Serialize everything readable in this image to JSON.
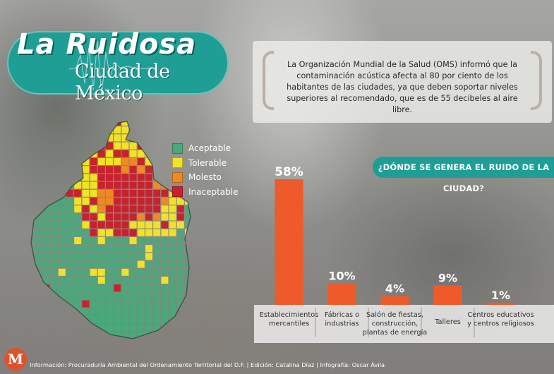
{
  "title": {
    "line1": "La Ruidosa",
    "line2": "Ciudad de México"
  },
  "info_text": "La Organización Mundial de la Salud (OMS) informó que la contaminación acústica afecta al 80 por ciento de los habitantes de las ciudades, ya que deben soportar niveles superiores al recomendado, que es de 55 decibeles al aire libre.",
  "legend": [
    {
      "label": "Aceptable",
      "color": "#4aa87a"
    },
    {
      "label": "Tolerable",
      "color": "#f0e226"
    },
    {
      "label": "Molesto",
      "color": "#ee8a22"
    },
    {
      "label": "Inaceptable",
      "color": "#c8222e"
    }
  ],
  "colors": {
    "teal": "#1f9e96",
    "bar": "#ef5a2a",
    "logo": "#e2502a"
  },
  "chart_data": {
    "type": "bar",
    "title": "¿DÓNDE SE GENERA EL RUIDO DE LA CIUDAD?",
    "categories": [
      [
        "Establecimientos",
        "mercantiles"
      ],
      [
        "Fábricas o",
        "industrias"
      ],
      [
        "Salón de fiestas,",
        "construcción,",
        "plantas de energía"
      ],
      [
        "Talleres"
      ],
      [
        "Centros educativos",
        "y centros religiosos"
      ]
    ],
    "values": [
      58,
      10,
      4,
      9,
      1
    ],
    "value_labels": [
      "58%",
      "10%",
      "4%",
      "9%",
      "1%"
    ],
    "ylim": [
      0,
      58
    ],
    "grid": false,
    "xlabel": "",
    "ylabel": ""
  },
  "footer": {
    "logo_letter": "M",
    "credits": "Información: Procuraduría Ambiental del Ordenamiento Territorial del D.F. | Edición: Catalina Díaz | Infografía: Oscar Ávila"
  }
}
